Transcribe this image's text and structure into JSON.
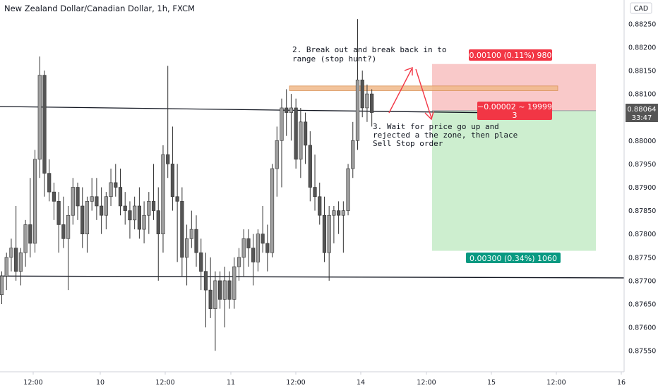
{
  "header": {
    "symbol_title": "New Zealand Dollar/Canadian Dollar, 1h, FXCM",
    "currency_badge": "CAD"
  },
  "price_label": {
    "value": "0.88064",
    "countdown": "33:47"
  },
  "annotations": {
    "note1_line1": "2. Break out and break back in to",
    "note1_line2": "range (stop hunt?)",
    "note3_line1": "3. Wait for price go up and",
    "note3_line2": "rejected a the zone, then place",
    "note3_line3": "Sell Stop order"
  },
  "position": {
    "stop_label": "0.00100 (0.11%) 980",
    "target_label": "0.00300 (0.34%) 1060",
    "pnl_line1": "−0.00002 ~ 19999",
    "pnl_line2": "3",
    "entry": 0.88064,
    "stop": 0.88164,
    "target": 0.87764
  },
  "colors": {
    "bull_candle": "#9e9e9e",
    "bear_candle": "#555555",
    "stop_zone": "#f9c9c9",
    "target_zone": "#cdeecf",
    "stop_label_bg": "#f23645",
    "target_label_bg": "#089981",
    "zone_fill": "#f0b98a",
    "arrow": "#f23645",
    "price_label_bg": "#555555"
  },
  "chart_data": {
    "type": "candlestick",
    "y_axis": {
      "ticks": [
        "0.88250",
        "0.88200",
        "0.88150",
        "0.88100",
        "0.88050",
        "0.88000",
        "0.87950",
        "0.87900",
        "0.87850",
        "0.87800",
        "0.87750",
        "0.87700",
        "0.87650",
        "0.87600",
        "0.87550"
      ],
      "ylim": [
        0.87505,
        0.88295
      ]
    },
    "x_axis": {
      "ticks": [
        "12:00",
        "10",
        "12:00",
        "11",
        "12:00",
        "14",
        "12:00",
        "15",
        "12:00",
        "16"
      ]
    },
    "levels": [
      {
        "name": "range-top",
        "from": [
          0,
          0.88073
        ],
        "to": [
          66,
          0.8806
        ]
      },
      {
        "name": "range-bottom",
        "from": [
          0,
          0.8771
        ],
        "to": [
          100,
          0.87706
        ]
      }
    ],
    "resistance_zone": {
      "x_from": 45,
      "x_to": 88,
      "y_from": 0.88107,
      "y_to": 0.88117
    },
    "candles": [
      {
        "o": 0.8767,
        "h": 0.8772,
        "l": 0.8765,
        "c": 0.8771
      },
      {
        "o": 0.8771,
        "h": 0.8776,
        "l": 0.8768,
        "c": 0.8775
      },
      {
        "o": 0.8775,
        "h": 0.8779,
        "l": 0.8772,
        "c": 0.8777
      },
      {
        "o": 0.8777,
        "h": 0.8786,
        "l": 0.877,
        "c": 0.8772
      },
      {
        "o": 0.8772,
        "h": 0.8777,
        "l": 0.8769,
        "c": 0.8776
      },
      {
        "o": 0.8776,
        "h": 0.8783,
        "l": 0.8773,
        "c": 0.8782
      },
      {
        "o": 0.8782,
        "h": 0.8792,
        "l": 0.8775,
        "c": 0.8778
      },
      {
        "o": 0.8778,
        "h": 0.8798,
        "l": 0.8776,
        "c": 0.8796
      },
      {
        "o": 0.8796,
        "h": 0.8818,
        "l": 0.8792,
        "c": 0.8814
      },
      {
        "o": 0.8814,
        "h": 0.8815,
        "l": 0.8788,
        "c": 0.8793
      },
      {
        "o": 0.8793,
        "h": 0.8796,
        "l": 0.8787,
        "c": 0.8789
      },
      {
        "o": 0.8789,
        "h": 0.8791,
        "l": 0.8783,
        "c": 0.8787
      },
      {
        "o": 0.8787,
        "h": 0.8789,
        "l": 0.8776,
        "c": 0.8782
      },
      {
        "o": 0.8782,
        "h": 0.8788,
        "l": 0.8777,
        "c": 0.8779
      },
      {
        "o": 0.8779,
        "h": 0.8786,
        "l": 0.8768,
        "c": 0.8784
      },
      {
        "o": 0.8784,
        "h": 0.8792,
        "l": 0.8782,
        "c": 0.879
      },
      {
        "o": 0.879,
        "h": 0.8791,
        "l": 0.8783,
        "c": 0.8786
      },
      {
        "o": 0.8786,
        "h": 0.879,
        "l": 0.8777,
        "c": 0.878
      },
      {
        "o": 0.878,
        "h": 0.8788,
        "l": 0.8776,
        "c": 0.8787
      },
      {
        "o": 0.8787,
        "h": 0.8792,
        "l": 0.8785,
        "c": 0.8788
      },
      {
        "o": 0.8788,
        "h": 0.8792,
        "l": 0.8783,
        "c": 0.8786
      },
      {
        "o": 0.8786,
        "h": 0.879,
        "l": 0.878,
        "c": 0.8784
      },
      {
        "o": 0.8784,
        "h": 0.8789,
        "l": 0.8781,
        "c": 0.8788
      },
      {
        "o": 0.8788,
        "h": 0.8794,
        "l": 0.8786,
        "c": 0.8791
      },
      {
        "o": 0.8791,
        "h": 0.8795,
        "l": 0.8788,
        "c": 0.879
      },
      {
        "o": 0.879,
        "h": 0.8794,
        "l": 0.8784,
        "c": 0.8786
      },
      {
        "o": 0.8786,
        "h": 0.8789,
        "l": 0.8782,
        "c": 0.8785
      },
      {
        "o": 0.8785,
        "h": 0.8787,
        "l": 0.8779,
        "c": 0.8783
      },
      {
        "o": 0.8783,
        "h": 0.8788,
        "l": 0.8781,
        "c": 0.8786
      },
      {
        "o": 0.8786,
        "h": 0.879,
        "l": 0.8779,
        "c": 0.8781
      },
      {
        "o": 0.8781,
        "h": 0.8787,
        "l": 0.8778,
        "c": 0.8784
      },
      {
        "o": 0.8784,
        "h": 0.8789,
        "l": 0.878,
        "c": 0.8787
      },
      {
        "o": 0.8787,
        "h": 0.8795,
        "l": 0.8783,
        "c": 0.8785
      },
      {
        "o": 0.8785,
        "h": 0.879,
        "l": 0.877,
        "c": 0.878
      },
      {
        "o": 0.878,
        "h": 0.8799,
        "l": 0.8776,
        "c": 0.8797
      },
      {
        "o": 0.8797,
        "h": 0.8816,
        "l": 0.8792,
        "c": 0.8795
      },
      {
        "o": 0.8795,
        "h": 0.8803,
        "l": 0.8785,
        "c": 0.8788
      },
      {
        "o": 0.8788,
        "h": 0.8795,
        "l": 0.8774,
        "c": 0.8787
      },
      {
        "o": 0.8787,
        "h": 0.879,
        "l": 0.8771,
        "c": 0.8775
      },
      {
        "o": 0.8775,
        "h": 0.8782,
        "l": 0.8769,
        "c": 0.8779
      },
      {
        "o": 0.8779,
        "h": 0.8785,
        "l": 0.8777,
        "c": 0.8781
      },
      {
        "o": 0.8781,
        "h": 0.8784,
        "l": 0.8773,
        "c": 0.8776
      },
      {
        "o": 0.8776,
        "h": 0.8779,
        "l": 0.8768,
        "c": 0.8772
      },
      {
        "o": 0.8772,
        "h": 0.8776,
        "l": 0.876,
        "c": 0.8768
      },
      {
        "o": 0.8768,
        "h": 0.8775,
        "l": 0.8762,
        "c": 0.8764
      },
      {
        "o": 0.8764,
        "h": 0.8772,
        "l": 0.8755,
        "c": 0.877
      },
      {
        "o": 0.877,
        "h": 0.8772,
        "l": 0.8764,
        "c": 0.8766
      },
      {
        "o": 0.8766,
        "h": 0.8773,
        "l": 0.876,
        "c": 0.877
      },
      {
        "o": 0.877,
        "h": 0.8772,
        "l": 0.8764,
        "c": 0.8766
      },
      {
        "o": 0.8766,
        "h": 0.8775,
        "l": 0.8764,
        "c": 0.8773
      },
      {
        "o": 0.8773,
        "h": 0.8777,
        "l": 0.877,
        "c": 0.8775
      },
      {
        "o": 0.8775,
        "h": 0.8781,
        "l": 0.8771,
        "c": 0.8779
      },
      {
        "o": 0.8779,
        "h": 0.8781,
        "l": 0.8773,
        "c": 0.8777
      },
      {
        "o": 0.8777,
        "h": 0.878,
        "l": 0.8769,
        "c": 0.8774
      },
      {
        "o": 0.8774,
        "h": 0.8781,
        "l": 0.8772,
        "c": 0.878
      },
      {
        "o": 0.878,
        "h": 0.8786,
        "l": 0.8776,
        "c": 0.8778
      },
      {
        "o": 0.8778,
        "h": 0.8782,
        "l": 0.8772,
        "c": 0.8776
      },
      {
        "o": 0.8776,
        "h": 0.8795,
        "l": 0.8775,
        "c": 0.8794
      },
      {
        "o": 0.8794,
        "h": 0.8803,
        "l": 0.8788,
        "c": 0.88
      },
      {
        "o": 0.88,
        "h": 0.8809,
        "l": 0.879,
        "c": 0.8807
      },
      {
        "o": 0.8807,
        "h": 0.8811,
        "l": 0.8801,
        "c": 0.8806
      },
      {
        "o": 0.8806,
        "h": 0.881,
        "l": 0.88,
        "c": 0.8807
      },
      {
        "o": 0.8807,
        "h": 0.8809,
        "l": 0.8794,
        "c": 0.8796
      },
      {
        "o": 0.8796,
        "h": 0.8807,
        "l": 0.8792,
        "c": 0.8804
      },
      {
        "o": 0.8804,
        "h": 0.8806,
        "l": 0.8795,
        "c": 0.8799
      },
      {
        "o": 0.8799,
        "h": 0.8802,
        "l": 0.8787,
        "c": 0.879
      },
      {
        "o": 0.879,
        "h": 0.8797,
        "l": 0.8785,
        "c": 0.8788
      },
      {
        "o": 0.8788,
        "h": 0.8791,
        "l": 0.8782,
        "c": 0.8784
      },
      {
        "o": 0.8784,
        "h": 0.8788,
        "l": 0.8774,
        "c": 0.8776
      },
      {
        "o": 0.8776,
        "h": 0.8786,
        "l": 0.877,
        "c": 0.8784
      },
      {
        "o": 0.8784,
        "h": 0.8786,
        "l": 0.8778,
        "c": 0.8785
      },
      {
        "o": 0.8785,
        "h": 0.8787,
        "l": 0.878,
        "c": 0.8784
      },
      {
        "o": 0.8784,
        "h": 0.8787,
        "l": 0.8776,
        "c": 0.8785
      },
      {
        "o": 0.8785,
        "h": 0.8795,
        "l": 0.8784,
        "c": 0.8794
      },
      {
        "o": 0.8794,
        "h": 0.8804,
        "l": 0.8792,
        "c": 0.88
      },
      {
        "o": 0.88,
        "h": 0.8826,
        "l": 0.8798,
        "c": 0.8813
      },
      {
        "o": 0.8813,
        "h": 0.8815,
        "l": 0.8805,
        "c": 0.8807
      },
      {
        "o": 0.8807,
        "h": 0.8812,
        "l": 0.8804,
        "c": 0.881
      },
      {
        "o": 0.881,
        "h": 0.8811,
        "l": 0.8803,
        "c": 0.8806
      }
    ]
  }
}
